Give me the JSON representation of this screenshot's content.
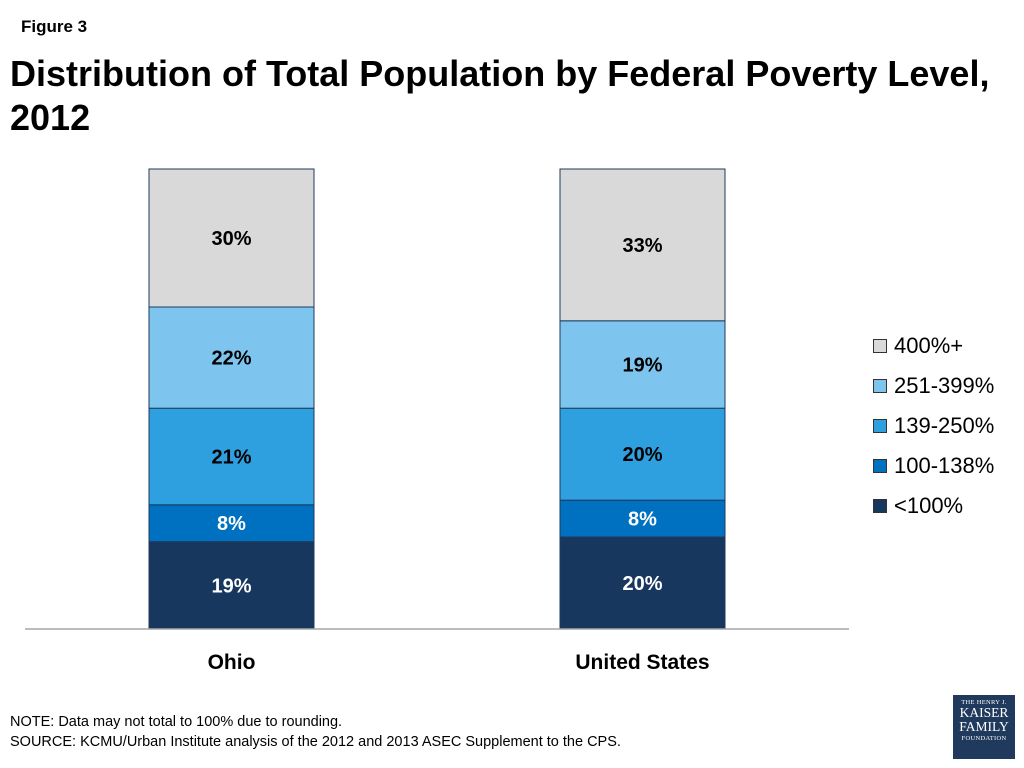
{
  "figure_label": "Figure 3",
  "chart_data": {
    "type": "bar",
    "stacked": true,
    "title": "Distribution of Total Population by Federal Poverty Level, 2012",
    "categories": [
      "Ohio",
      "United States"
    ],
    "series": [
      {
        "name": "<100%",
        "values": [
          19,
          20
        ],
        "labels": [
          "19%",
          "20%"
        ],
        "color": "#17375e",
        "label_color": "#ffffff"
      },
      {
        "name": "100-138%",
        "values": [
          8,
          8
        ],
        "labels": [
          "8%",
          "8%"
        ],
        "color": "#0070c0",
        "label_color": "#ffffff"
      },
      {
        "name": "139-250%",
        "values": [
          21,
          20
        ],
        "labels": [
          "21%",
          "20%"
        ],
        "color": "#2e9fdf",
        "label_color": "#000000"
      },
      {
        "name": "251-399%",
        "values": [
          22,
          19
        ],
        "labels": [
          "22%",
          "19%"
        ],
        "color": "#7dc5ee",
        "label_color": "#000000"
      },
      {
        "name": "400%+",
        "values": [
          30,
          33
        ],
        "labels": [
          "30%",
          "33%"
        ],
        "color": "#d9d9d9",
        "label_color": "#000000"
      }
    ],
    "legend_position": "right",
    "grid": false
  },
  "notes": {
    "note": "NOTE: Data may not total to 100% due to rounding.",
    "source": "SOURCE: KCMU/Urban Institute analysis of the 2012 and 2013 ASEC Supplement to the CPS."
  },
  "logo": {
    "line1": "THE HENRY J.",
    "line2": "KAISER",
    "line3": "FAMILY",
    "line4": "FOUNDATION"
  }
}
